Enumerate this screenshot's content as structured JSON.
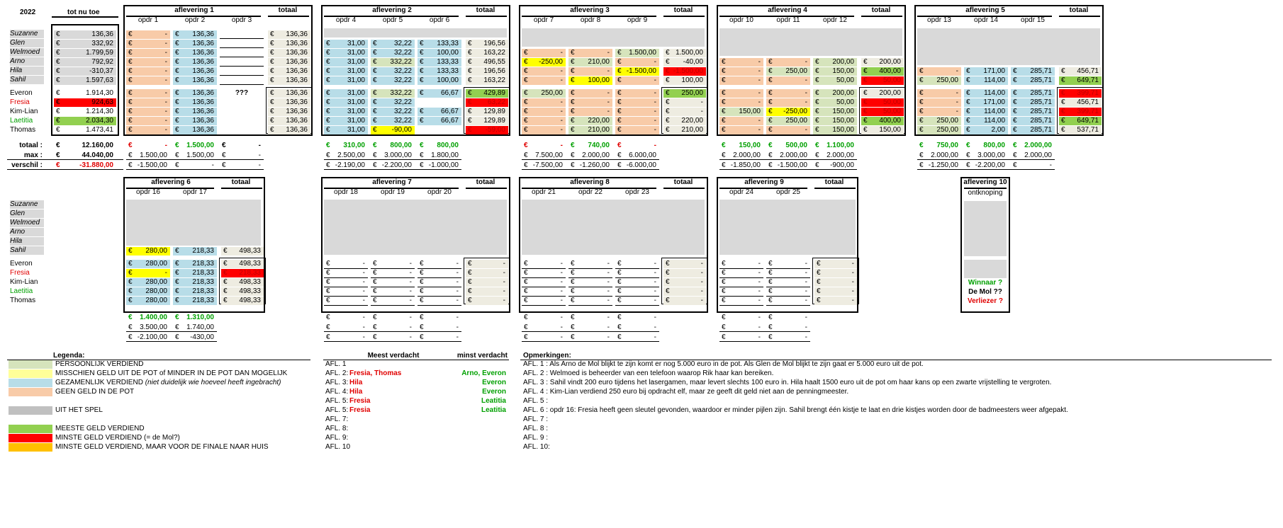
{
  "year": "2022",
  "cur": "€",
  "hdr": {
    "tot": "tot nu toe",
    "totaal": "totaal"
  },
  "names": {
    "names_top": [
      "Suzanne",
      "Glen",
      "Welmoed",
      "Arno",
      "Hila",
      "Sahil"
    ],
    "names_bot": [
      "Everon",
      "Fresia",
      "Kim-Lian",
      "Laetitia",
      "Thomas"
    ]
  },
  "totnutoe": {
    "top": [
      "136,36",
      "332,92",
      "1.799,59",
      "792,92",
      "-310,37",
      "1.597,63"
    ],
    "bot": [
      "1.914,30",
      "924,63",
      "1.214,30",
      "2.034,30",
      "1.473,41"
    ]
  },
  "sumlabels": [
    "totaal :",
    "max :",
    "verschil :"
  ],
  "sumvals": [
    "12.160,00",
    "44.040,00",
    "-31.880,00"
  ],
  "episodes": [
    {
      "title": "aflevering 1",
      "cols": [
        "opdr 1",
        "opdr 2",
        "opdr 3"
      ],
      "top": [
        [
          "-",
          "136,36",
          ""
        ],
        [
          "-",
          "136,36",
          ""
        ],
        [
          "-",
          "136,36",
          ""
        ],
        [
          "-",
          "136,36",
          ""
        ],
        [
          "-",
          "136,36",
          ""
        ],
        [
          "-",
          "136,36",
          ""
        ]
      ],
      "tottop": [
        "136,36",
        "136,36",
        "136,36",
        "136,36",
        "136,36",
        "136,36"
      ],
      "bot": [
        [
          "-",
          "136,36",
          "???"
        ],
        [
          "-",
          "136,36",
          ""
        ],
        [
          "-",
          "136,36",
          ""
        ],
        [
          "-",
          "136,36",
          ""
        ],
        [
          "-",
          "136,36",
          ""
        ]
      ],
      "totbot": [
        "136,36",
        "136,36",
        "136,36",
        "136,36",
        "136,36"
      ],
      "sums": [
        [
          "-",
          "1.500,00",
          "-"
        ],
        [
          "1.500,00",
          "1.500,00",
          "-"
        ],
        [
          "-1.500,00",
          "-",
          "-"
        ]
      ]
    },
    {
      "title": "aflevering 2",
      "cols": [
        "opdr 4",
        "opdr 5",
        "opdr 6"
      ],
      "top": [
        [
          "",
          "",
          ""
        ],
        [
          "31,00",
          "32,22",
          "133,33"
        ],
        [
          "31,00",
          "32,22",
          "100,00"
        ],
        [
          "31,00",
          "332,22",
          "133,33"
        ],
        [
          "31,00",
          "32,22",
          "133,33"
        ],
        [
          "31,00",
          "32,22",
          "100,00"
        ]
      ],
      "tottop": [
        "",
        "196,56",
        "163,22",
        "496,55",
        "196,56",
        "163,22"
      ],
      "bot": [
        [
          "31,00",
          "332,22",
          "66,67"
        ],
        [
          "31,00",
          "32,22",
          ""
        ],
        [
          "31,00",
          "32,22",
          "66,67"
        ],
        [
          "31,00",
          "32,22",
          "66,67"
        ],
        [
          "31,00",
          "-90,00",
          ""
        ]
      ],
      "totbot": [
        "429,89",
        "63,22",
        "129,89",
        "129,89",
        "-59,00"
      ],
      "sums": [
        [
          "310,00",
          "800,00",
          "800,00"
        ],
        [
          "2.500,00",
          "3.000,00",
          "1.800,00"
        ],
        [
          "-2.190,00",
          "-2.200,00",
          "-1.000,00"
        ]
      ]
    },
    {
      "title": "aflevering 3",
      "cols": [
        "opdr 7",
        "opdr 8",
        "opdr 9"
      ],
      "top": [
        [
          "",
          "",
          ""
        ],
        [
          "",
          "",
          ""
        ],
        [
          "-",
          "-",
          "1.500,00"
        ],
        [
          "-250,00",
          "210,00",
          "-"
        ],
        [
          "-",
          "-",
          "-1.500,00"
        ],
        [
          "-",
          "100,00",
          "-"
        ]
      ],
      "tottop": [
        "",
        "",
        "1.500,00",
        "-40,00",
        "-1.500,00",
        "100,00"
      ],
      "bot": [
        [
          "250,00",
          "-",
          "-"
        ],
        [
          "-",
          "-",
          "-"
        ],
        [
          "-",
          "-",
          "-"
        ],
        [
          "-",
          "220,00",
          "-"
        ],
        [
          "-",
          "210,00",
          "-"
        ]
      ],
      "totbot": [
        "250,00",
        "-",
        "-",
        "220,00",
        "210,00"
      ],
      "sums": [
        [
          "-",
          "740,00",
          "-"
        ],
        [
          "7.500,00",
          "2.000,00",
          "6.000,00"
        ],
        [
          "-7.500,00",
          "-1.260,00",
          "-6.000,00"
        ]
      ]
    },
    {
      "title": "aflevering 4",
      "cols": [
        "opdr 10",
        "opdr 11",
        "opdr 12"
      ],
      "top": [
        [
          "",
          "",
          ""
        ],
        [
          "",
          "",
          ""
        ],
        [
          "",
          "",
          ""
        ],
        [
          "-",
          "-",
          "200,00"
        ],
        [
          "-",
          "250,00",
          "150,00"
        ],
        [
          "-",
          "-",
          "50,00"
        ]
      ],
      "tottop": [
        "",
        "",
        "",
        "200,00",
        "400,00",
        "50,00"
      ],
      "bot": [
        [
          "-",
          "-",
          "200,00"
        ],
        [
          "-",
          "-",
          "50,00"
        ],
        [
          "150,00",
          "-250,00",
          "150,00"
        ],
        [
          "-",
          "250,00",
          "150,00"
        ],
        [
          "-",
          "-",
          "150,00"
        ]
      ],
      "totbot": [
        "200,00",
        "50,00",
        "50,00",
        "400,00",
        "150,00"
      ],
      "sums": [
        [
          "150,00",
          "500,00",
          "1.100,00"
        ],
        [
          "2.000,00",
          "2.000,00",
          "2.000,00"
        ],
        [
          "-1.850,00",
          "-1.500,00",
          "-900,00"
        ]
      ]
    },
    {
      "title": "aflevering 5",
      "cols": [
        "opdr 13",
        "opdr 14",
        "opdr 15"
      ],
      "top": [
        [
          "",
          "",
          ""
        ],
        [
          "",
          "",
          ""
        ],
        [
          "",
          "",
          ""
        ],
        [
          "",
          "",
          ""
        ],
        [
          "-",
          "171,00",
          "285,71"
        ],
        [
          "250,00",
          "114,00",
          "285,71"
        ]
      ],
      "tottop": [
        "",
        "",
        "",
        "",
        "456,71",
        "649,71"
      ],
      "bot": [
        [
          "-",
          "114,00",
          "285,71"
        ],
        [
          "-",
          "171,00",
          "285,71"
        ],
        [
          "-",
          "114,00",
          "285,71"
        ],
        [
          "250,00",
          "114,00",
          "285,71"
        ],
        [
          "250,00",
          "2,00",
          "285,71"
        ]
      ],
      "totbot": [
        "399,71",
        "456,71",
        "399,71",
        "649,71",
        "537,71"
      ],
      "sums": [
        [
          "750,00",
          "800,00",
          "2.000,00"
        ],
        [
          "2.000,00",
          "3.000,00",
          "2.000,00"
        ],
        [
          "-1.250,00",
          "-2.200,00",
          "-"
        ]
      ]
    },
    {
      "title": "aflevering 6",
      "cols": [
        "opdr 16",
        "opdr 17"
      ],
      "top": [
        [
          "",
          ""
        ],
        [
          "",
          ""
        ],
        [
          "",
          ""
        ],
        [
          "",
          ""
        ],
        [
          "",
          ""
        ],
        [
          "280,00",
          "218,33"
        ]
      ],
      "tottop": [
        "",
        "",
        "",
        "",
        "",
        "498,33"
      ],
      "bot": [
        [
          "280,00",
          "218,33"
        ],
        [
          "-",
          "218,33"
        ],
        [
          "280,00",
          "218,33"
        ],
        [
          "280,00",
          "218,33"
        ],
        [
          "280,00",
          "218,33"
        ]
      ],
      "totbot": [
        "498,33",
        "218,33",
        "498,33",
        "498,33",
        "498,33"
      ],
      "sums": [
        [
          "1.400,00",
          "1.310,00"
        ],
        [
          "3.500,00",
          "1.740,00"
        ],
        [
          "-2.100,00",
          "-430,00"
        ]
      ]
    },
    {
      "title": "aflevering 7",
      "cols": [
        "opdr 18",
        "opdr 19",
        "opdr 20"
      ],
      "top": [],
      "tottop": [],
      "bot": [
        [
          "-",
          "-",
          "-"
        ],
        [
          "-",
          "-",
          "-"
        ],
        [
          "-",
          "-",
          "-"
        ],
        [
          "-",
          "-",
          "-"
        ],
        [
          "-",
          "-",
          "-"
        ]
      ],
      "totbot": [
        "-",
        "-",
        "-",
        "-",
        "-"
      ],
      "sums": [
        [
          "-",
          "-",
          "-"
        ],
        [
          "-",
          "-",
          "-"
        ],
        [
          "-",
          "-",
          "-"
        ]
      ]
    },
    {
      "title": "aflevering 8",
      "cols": [
        "opdr 21",
        "opdr 22",
        "opdr 23"
      ],
      "top": [],
      "tottop": [],
      "bot": [
        [
          "-",
          "-",
          "-"
        ],
        [
          "-",
          "-",
          "-"
        ],
        [
          "-",
          "-",
          "-"
        ],
        [
          "-",
          "-",
          "-"
        ],
        [
          "-",
          "-",
          "-"
        ]
      ],
      "totbot": [
        "-",
        "-",
        "-",
        "-",
        "-"
      ],
      "sums": [
        [
          "-",
          "-",
          "-"
        ],
        [
          "-",
          "-",
          "-"
        ],
        [
          "-",
          "-",
          "-"
        ]
      ]
    },
    {
      "title": "aflevering 9",
      "cols": [
        "opdr 24",
        "opdr 25"
      ],
      "top": [],
      "tottop": [],
      "bot": [
        [
          "-",
          "-"
        ],
        [
          "-",
          "-"
        ],
        [
          "-",
          "-"
        ],
        [
          "-",
          "-"
        ],
        [
          "-",
          "-"
        ]
      ],
      "totbot": [
        "-",
        "-",
        "-",
        "-",
        "-"
      ],
      "sums": [
        [
          "-",
          "-"
        ],
        [
          "-",
          "-"
        ],
        [
          "-",
          "-"
        ]
      ]
    }
  ],
  "ep10": {
    "title": "aflevering 10",
    "sub": "ontknoping",
    "winnaar": "Winnaar ?",
    "demol": "De Mol ??",
    "verliezer": "Verliezer ?"
  },
  "legend": {
    "title": "Legenda:",
    "items": [
      "PERSOONLIJK VERDIEND",
      "MISSCHIEN GELD UIT DE POT of MINDER IN DE POT DAN MOGELIJK",
      "GEZAMENLIJK VERDIEND",
      "GEEN GELD IN DE POT",
      "UIT HET SPEL",
      "MEESTE GELD VERDIEND",
      "MINSTE GELD VERDIEND (= de Mol?)",
      "MINSTE GELD VERDIEND, MAAR VOOR DE FINALE NAAR HUIS"
    ],
    "note3": "(niet duidelijk wie hoeveel heeft ingebracht)",
    "colors": [
      "#d6e4bc",
      "#ffff99",
      "#b8dde8",
      "#f8cba8",
      "#c0c0c0",
      "#92d050",
      "#ff0000",
      "#ffc000"
    ]
  },
  "suspect": {
    "h1": "Meest verdacht",
    "h2": "minst verdacht",
    "afl": [
      "AFL. 1",
      "AFL. 2:",
      "AFL. 3:",
      "AFL. 4:",
      "AFL. 5:",
      "AFL. 5:",
      "AFL. 7:",
      "AFL. 8:",
      "AFL. 9:",
      "AFL. 10"
    ],
    "most": [
      "",
      "Fresia, Thomas",
      "Hila",
      "Hila",
      "Fresia",
      "Fresia",
      "",
      "",
      "",
      ""
    ],
    "least": [
      "",
      "Arno, Everon",
      "Everon",
      "Everon",
      "Leatitia",
      "Leatitia",
      "",
      "",
      "",
      ""
    ]
  },
  "remarks": {
    "title": "Opmerkingen:",
    "lines": [
      "AFL. 1 : Als Arno de Mol blijkt te zijn komt er nog 5.000 euro in de pot. Als Glen de Mol blijkt te zijn gaat er 5.000 euro uit de pot.",
      "AFL. 2 : Welmoed is beheerder van een telefoon waarop Rik haar kan bereiken.",
      "AFL. 3 : Sahil vindt 200 euro tijdens het lasergamen, maar levert slechts 100 euro in.       Hila haalt 1500 euro uit de pot om haar kans op een zwarte vrijstelling te vergroten.",
      "AFL. 4 : Kim-Lian verdiend 250 euro bij opdracht elf, maar ze geeft dit geld niet aan de penningmeester.",
      "AFL. 5 :",
      "AFL. 6 : opdr 16: Fresia heeft geen sleutel gevonden, waardoor er minder pijlen zijn. Sahil brengt één kistje te laat en drie kistjes worden door de badmeesters weer afgepakt.",
      "AFL. 7 :",
      "AFL. 8 :",
      "AFL. 9 :",
      "AFL. 10:"
    ]
  },
  "colors": {
    "orange": "#f8cba8",
    "blue": "#b8dde8",
    "lgreen": "#d6e4bc",
    "yellow": "#ffff00",
    "red": "#ff0000",
    "green": "#92d050",
    "cream": "#eeece1",
    "gray": "#d9d9d9"
  }
}
